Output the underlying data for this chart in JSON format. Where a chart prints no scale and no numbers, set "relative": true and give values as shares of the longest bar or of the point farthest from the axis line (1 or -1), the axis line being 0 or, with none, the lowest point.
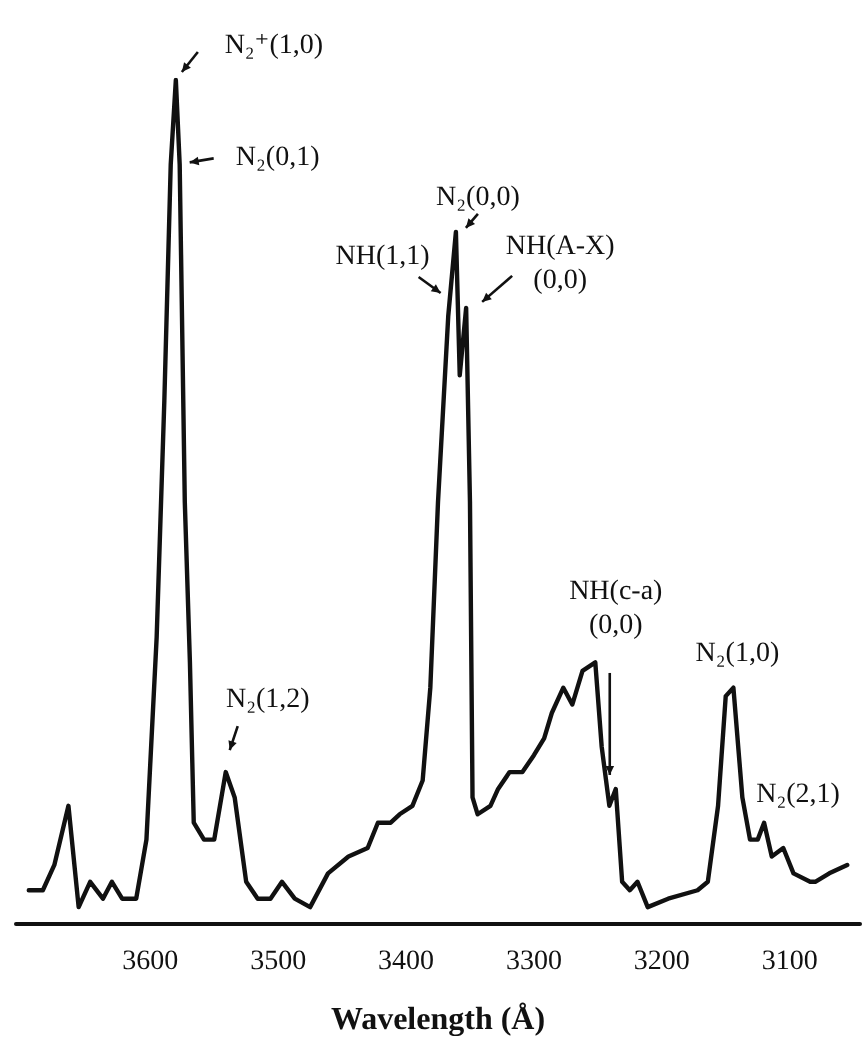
{
  "chart_data": {
    "type": "line",
    "relative": true,
    "xlabel": "Wavelength (Å)",
    "xlim": [
      3705,
      3045
    ],
    "xticks": [
      3600,
      3500,
      3400,
      3300,
      3200,
      3100
    ],
    "grid": false,
    "marker": "none",
    "line_style": "solid",
    "series": [
      {
        "color": "#111111",
        "x": [
          3695,
          3684,
          3675,
          3664,
          3656,
          3647,
          3637,
          3630,
          3622,
          3611,
          3603,
          3595,
          3589,
          3584,
          3580,
          3577,
          3573,
          3569,
          3566,
          3558,
          3550,
          3541,
          3534,
          3525,
          3516,
          3506,
          3497,
          3487,
          3475,
          3461,
          3445,
          3430,
          3422,
          3412,
          3405,
          3395,
          3387,
          3381,
          3375,
          3367,
          3361,
          3358,
          3353,
          3350,
          3348,
          3344,
          3334,
          3328,
          3319,
          3309,
          3300,
          3292,
          3286,
          3277,
          3270,
          3262,
          3252,
          3247,
          3241,
          3236,
          3231,
          3225,
          3219,
          3211,
          3195,
          3172,
          3164,
          3156,
          3150,
          3144,
          3137,
          3131,
          3125,
          3120,
          3114,
          3105,
          3097,
          3084,
          3080,
          3069,
          3055
        ],
        "values": [
          0.04,
          0.04,
          0.07,
          0.14,
          0.02,
          0.05,
          0.03,
          0.05,
          0.03,
          0.03,
          0.1,
          0.34,
          0.62,
          0.9,
          1,
          0.9,
          0.5,
          0.31,
          0.12,
          0.1,
          0.1,
          0.18,
          0.15,
          0.05,
          0.03,
          0.03,
          0.05,
          0.03,
          0.02,
          0.06,
          0.08,
          0.09,
          0.12,
          0.12,
          0.13,
          0.14,
          0.17,
          0.28,
          0.5,
          0.72,
          0.82,
          0.65,
          0.73,
          0.5,
          0.15,
          0.13,
          0.14,
          0.16,
          0.18,
          0.18,
          0.2,
          0.22,
          0.25,
          0.28,
          0.26,
          0.3,
          0.31,
          0.21,
          0.14,
          0.16,
          0.05,
          0.04,
          0.05,
          0.02,
          0.03,
          0.04,
          0.05,
          0.14,
          0.27,
          0.28,
          0.15,
          0.1,
          0.1,
          0.12,
          0.08,
          0.09,
          0.06,
          0.05,
          0.05,
          0.06,
          0.07
        ]
      }
    ],
    "annotations": [
      {
        "text": "N₂⁺(1,0)",
        "x": 3580,
        "y": 1
      },
      {
        "text": "N₂(0,1)",
        "x": 3577,
        "y": 0.9
      },
      {
        "text": "N₂(0,0)",
        "x": 3361,
        "y": 0.82
      },
      {
        "text": "NH(1,1)",
        "x": 3362,
        "y": 0.75
      },
      {
        "text": "NH(A-X)\n(0,0)",
        "x": 3353,
        "y": 0.73
      },
      {
        "text": "N₂(1,2)",
        "x": 3541,
        "y": 0.18
      },
      {
        "text": "NH(c-a)\n(0,0)",
        "x": 3236,
        "y": 0.16
      },
      {
        "text": "N₂(1,0)",
        "x": 3144,
        "y": 0.28
      },
      {
        "text": "N₂(2,1)",
        "x": 3120,
        "y": 0.12
      }
    ]
  }
}
